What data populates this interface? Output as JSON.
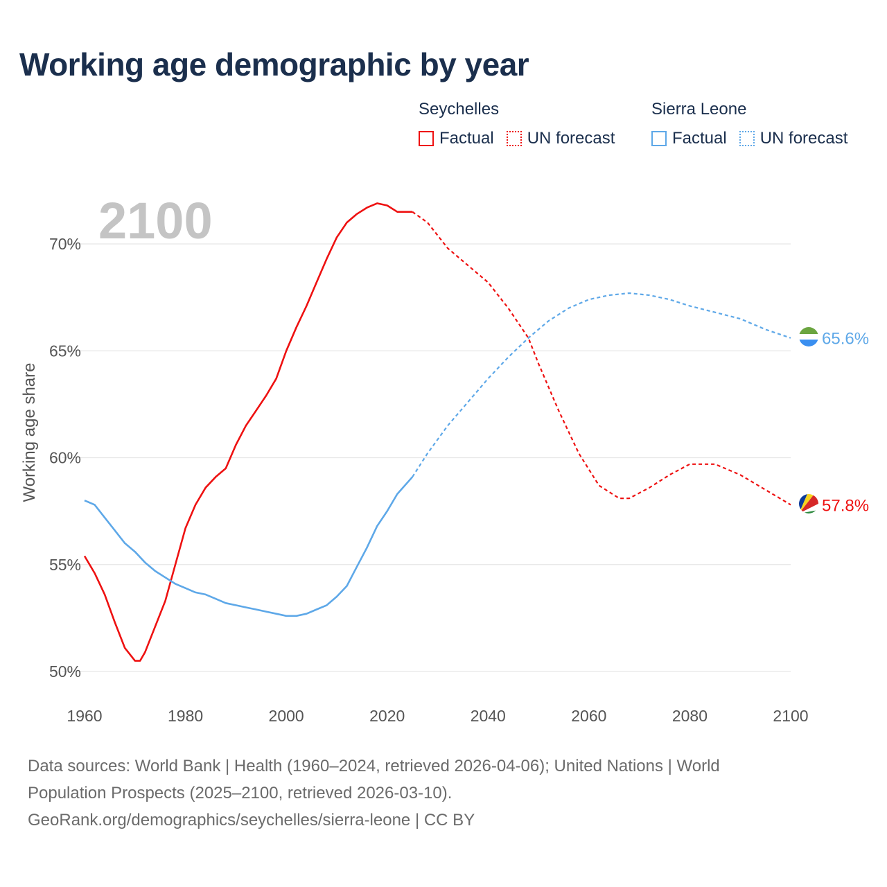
{
  "title": "Working age demographic by year",
  "legend": {
    "groups": [
      {
        "name": "Seychelles",
        "color": "#ee1111",
        "factual_label": "Factual",
        "forecast_label": "UN forecast"
      },
      {
        "name": "Sierra Leone",
        "color": "#5ea8e8",
        "factual_label": "Factual",
        "forecast_label": "UN forecast"
      }
    ]
  },
  "footer": {
    "line1": "Data sources: World Bank | Health (1960–2024, retrieved 2026-04-06); United Nations | World",
    "line2": "Population Prospects (2025–2100, retrieved 2026-03-10).",
    "line3": "GeoRank.org/demographics/seychelles/sierra-leone | CC BY"
  },
  "chart_data": {
    "type": "line",
    "title": "Working age demographic by year",
    "watermark_year": "2100",
    "xlabel": "",
    "ylabel": "Working age share",
    "xlim": [
      1960,
      2100
    ],
    "ylim": [
      50,
      72
    ],
    "x_ticks": [
      1960,
      1980,
      2000,
      2020,
      2040,
      2060,
      2080,
      2100
    ],
    "y_ticks": [
      50,
      55,
      60,
      65,
      70
    ],
    "y_tick_suffix": "%",
    "grid": true,
    "forecast_start": 2025,
    "series": [
      {
        "name": "Seychelles",
        "color": "#ee1111",
        "end_label": "57.8%",
        "flag": "seychelles-flag",
        "points": [
          [
            1960,
            55.4
          ],
          [
            1962,
            54.6
          ],
          [
            1964,
            53.6
          ],
          [
            1966,
            52.3
          ],
          [
            1968,
            51.1
          ],
          [
            1970,
            50.5
          ],
          [
            1971,
            50.5
          ],
          [
            1972,
            50.9
          ],
          [
            1974,
            52.1
          ],
          [
            1976,
            53.3
          ],
          [
            1978,
            55.0
          ],
          [
            1980,
            56.7
          ],
          [
            1982,
            57.8
          ],
          [
            1984,
            58.6
          ],
          [
            1986,
            59.1
          ],
          [
            1988,
            59.5
          ],
          [
            1990,
            60.6
          ],
          [
            1992,
            61.5
          ],
          [
            1994,
            62.2
          ],
          [
            1996,
            62.9
          ],
          [
            1998,
            63.7
          ],
          [
            2000,
            65.0
          ],
          [
            2002,
            66.1
          ],
          [
            2004,
            67.1
          ],
          [
            2006,
            68.2
          ],
          [
            2008,
            69.3
          ],
          [
            2010,
            70.3
          ],
          [
            2012,
            71.0
          ],
          [
            2014,
            71.4
          ],
          [
            2016,
            71.7
          ],
          [
            2018,
            71.9
          ],
          [
            2020,
            71.8
          ],
          [
            2022,
            71.5
          ],
          [
            2025,
            71.5
          ],
          [
            2028,
            71.0
          ],
          [
            2032,
            69.8
          ],
          [
            2036,
            69.0
          ],
          [
            2040,
            68.2
          ],
          [
            2044,
            67.0
          ],
          [
            2048,
            65.6
          ],
          [
            2050,
            64.4
          ],
          [
            2054,
            62.2
          ],
          [
            2058,
            60.2
          ],
          [
            2062,
            58.7
          ],
          [
            2066,
            58.1
          ],
          [
            2068,
            58.1
          ],
          [
            2072,
            58.6
          ],
          [
            2076,
            59.2
          ],
          [
            2080,
            59.7
          ],
          [
            2085,
            59.7
          ],
          [
            2090,
            59.2
          ],
          [
            2095,
            58.5
          ],
          [
            2100,
            57.8
          ]
        ]
      },
      {
        "name": "Sierra Leone",
        "color": "#5ea8e8",
        "end_label": "65.6%",
        "flag": "sierra-leone-flag",
        "points": [
          [
            1960,
            58.0
          ],
          [
            1962,
            57.8
          ],
          [
            1964,
            57.2
          ],
          [
            1966,
            56.6
          ],
          [
            1968,
            56.0
          ],
          [
            1970,
            55.6
          ],
          [
            1972,
            55.1
          ],
          [
            1974,
            54.7
          ],
          [
            1976,
            54.4
          ],
          [
            1978,
            54.1
          ],
          [
            1980,
            53.9
          ],
          [
            1982,
            53.7
          ],
          [
            1984,
            53.6
          ],
          [
            1986,
            53.4
          ],
          [
            1988,
            53.2
          ],
          [
            1990,
            53.1
          ],
          [
            1992,
            53.0
          ],
          [
            1994,
            52.9
          ],
          [
            1996,
            52.8
          ],
          [
            1998,
            52.7
          ],
          [
            2000,
            52.6
          ],
          [
            2002,
            52.6
          ],
          [
            2004,
            52.7
          ],
          [
            2006,
            52.9
          ],
          [
            2008,
            53.1
          ],
          [
            2010,
            53.5
          ],
          [
            2012,
            54.0
          ],
          [
            2014,
            54.9
          ],
          [
            2016,
            55.8
          ],
          [
            2018,
            56.8
          ],
          [
            2020,
            57.5
          ],
          [
            2022,
            58.3
          ],
          [
            2025,
            59.1
          ],
          [
            2028,
            60.2
          ],
          [
            2032,
            61.5
          ],
          [
            2036,
            62.6
          ],
          [
            2040,
            63.7
          ],
          [
            2044,
            64.7
          ],
          [
            2048,
            65.6
          ],
          [
            2052,
            66.4
          ],
          [
            2056,
            67.0
          ],
          [
            2060,
            67.4
          ],
          [
            2064,
            67.6
          ],
          [
            2068,
            67.7
          ],
          [
            2072,
            67.6
          ],
          [
            2076,
            67.4
          ],
          [
            2080,
            67.1
          ],
          [
            2085,
            66.8
          ],
          [
            2090,
            66.5
          ],
          [
            2095,
            66.0
          ],
          [
            2100,
            65.6
          ]
        ]
      }
    ]
  }
}
